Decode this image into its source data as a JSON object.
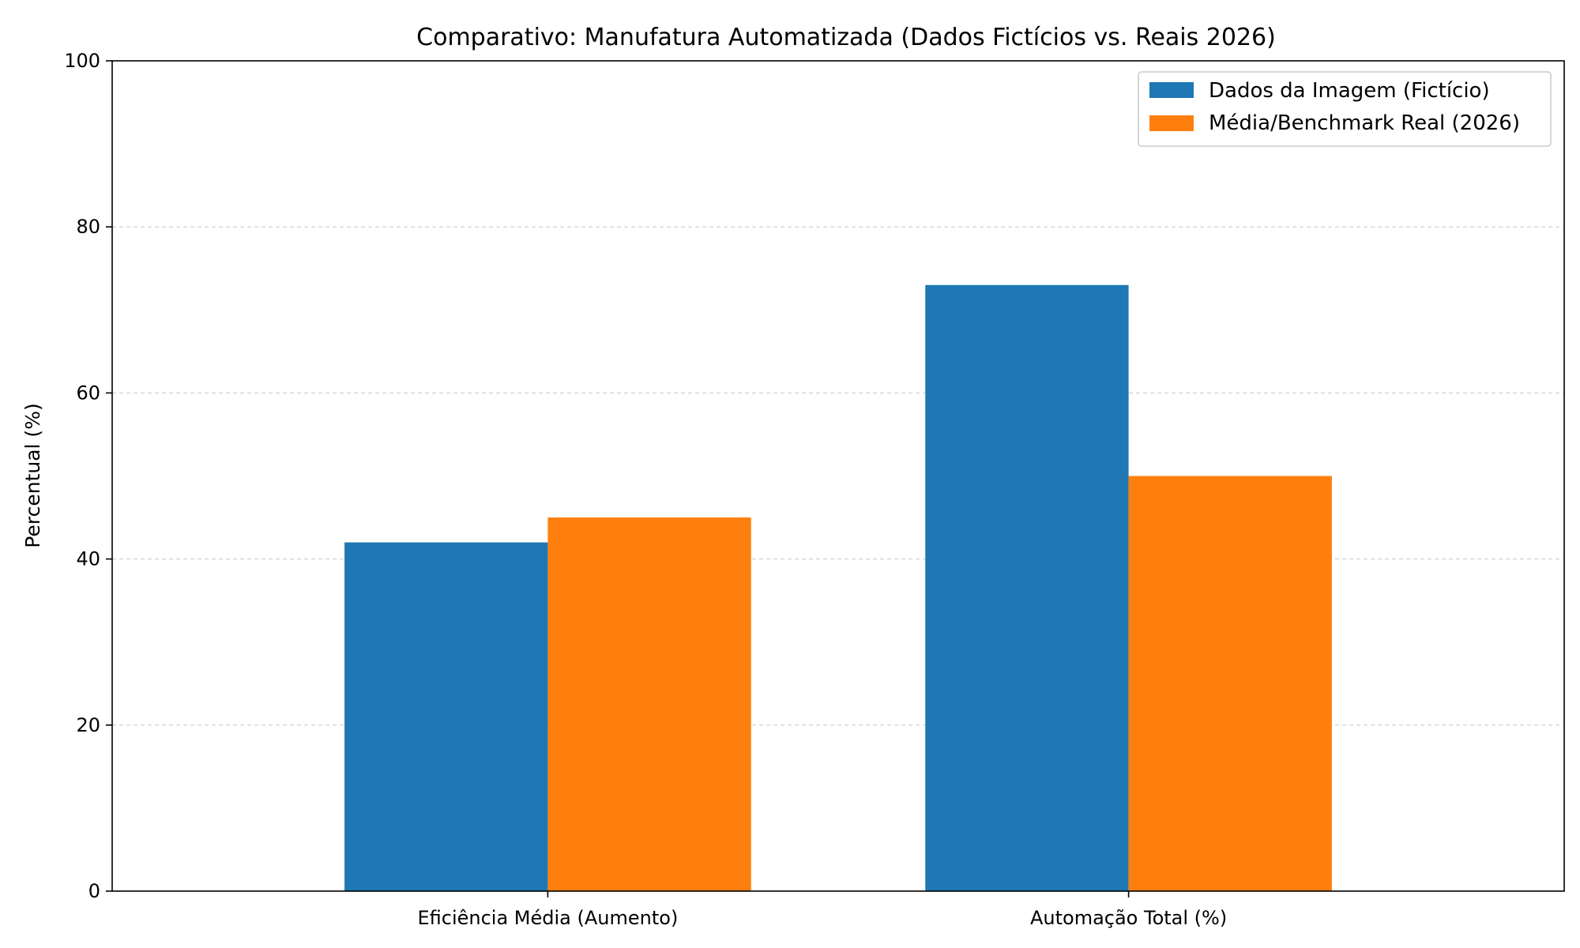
{
  "chart_data": {
    "type": "bar",
    "title": "Comparativo: Manufatura Automatizada (Dados Fictícios vs. Reais 2026)",
    "xlabel": "",
    "ylabel": "Percentual (%)",
    "categories": [
      "Eficiência Média (Aumento)",
      "Automação Total (%)"
    ],
    "series": [
      {
        "name": "Dados da Imagem (Fictício)",
        "values": [
          42,
          73
        ],
        "color": "#1f77b4"
      },
      {
        "name": "Média/Benchmark Real (2026)",
        "values": [
          45,
          50
        ],
        "color": "#ff7f0e"
      }
    ],
    "ylim": [
      0,
      100
    ],
    "yticks": [
      0,
      20,
      40,
      60,
      80,
      100
    ],
    "grid": "y-dashed",
    "legend_position": "top-right"
  }
}
